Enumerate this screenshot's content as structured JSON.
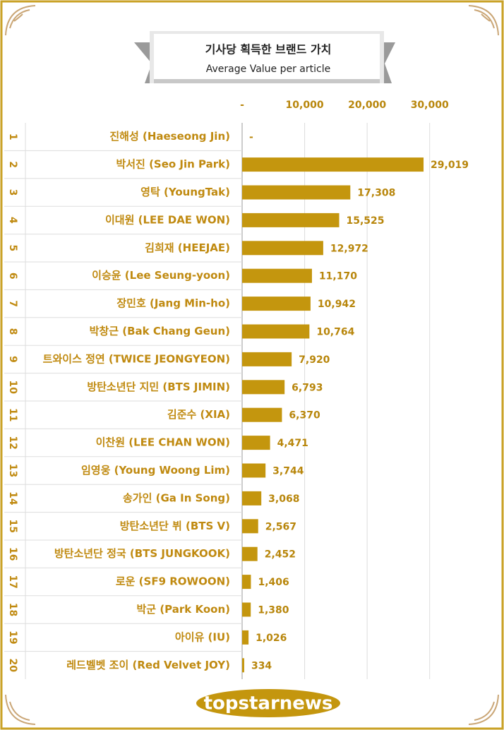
{
  "chart_data": {
    "type": "bar",
    "orientation": "horizontal",
    "title": "기사당 획득한 브랜드 가치",
    "subtitle": "Average Value per article",
    "ranks": [
      1,
      2,
      3,
      4,
      5,
      6,
      7,
      8,
      9,
      10,
      11,
      12,
      13,
      14,
      15,
      16,
      17,
      18,
      19,
      20
    ],
    "categories": [
      "진해성 (Haeseong Jin)",
      "박서진 (Seo Jin Park)",
      "영탁 (YoungTak)",
      "이대원 (LEE DAE WON)",
      "김희재 (HEEJAE)",
      "이승윤 (Lee Seung-yoon)",
      "장민호 (Jang Min-ho)",
      "박창근 (Bak Chang Geun)",
      "트와이스 정연 (TWICE JEONGYEON)",
      "방탄소년단 지민 (BTS JIMIN)",
      "김준수 (XIA)",
      "이찬원 (LEE CHAN WON)",
      "임영웅 (Young Woong Lim)",
      "송가인 (Ga In Song)",
      "방탄소년단 뷔 (BTS V)",
      "방탄소년단 정국 (BTS JUNGKOOK)",
      "로운 (SF9 ROWOON)",
      "박군 (Park Koon)",
      "아이유 (IU)",
      "레드벨벳 조이 (Red Velvet JOY)"
    ],
    "values": [
      0,
      29019,
      17308,
      15525,
      12972,
      11170,
      10942,
      10764,
      7920,
      6793,
      6370,
      4471,
      3744,
      3068,
      2567,
      2452,
      1406,
      1380,
      1026,
      334
    ],
    "value_labels": [
      "-",
      "29,019",
      "17,308",
      "15,525",
      "12,972",
      "11,170",
      "10,942",
      "10,764",
      "7,920",
      "6,793",
      "6,370",
      "4,471",
      "3,744",
      "3,068",
      "2,567",
      "2,452",
      "1,406",
      "1,380",
      "1,026",
      "334"
    ],
    "color": "#c4960e",
    "xlim": [
      0,
      35000
    ],
    "xticks": [
      {
        "value": 0,
        "label": "-"
      },
      {
        "value": 10000,
        "label": "10,000"
      },
      {
        "value": 20000,
        "label": "20,000"
      },
      {
        "value": 30000,
        "label": "30,000"
      }
    ],
    "grid": true,
    "logo": "topstarnews"
  }
}
